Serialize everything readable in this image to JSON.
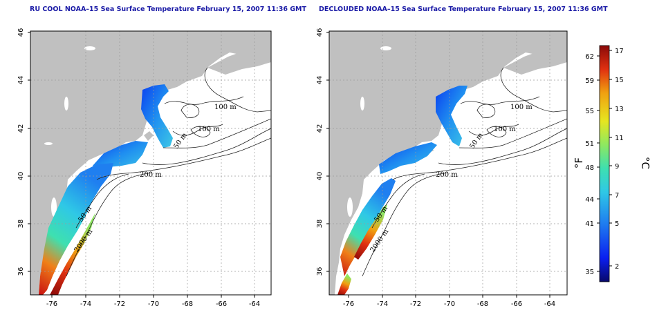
{
  "panels": [
    {
      "title": "RU COOL NOAA–15 Sea Surface Temperature February 15, 2007 11:36 GMT",
      "x_ticks": [
        "-76",
        "-74",
        "-72",
        "-70",
        "-68",
        "-66",
        "-64"
      ],
      "y_ticks": [
        "36",
        "38",
        "40",
        "42",
        "44",
        "46"
      ],
      "contour_labels": [
        "100 m",
        "100 m",
        "50 m",
        "200 m",
        "50 m",
        "2000 m"
      ]
    },
    {
      "title": "DECLOUDED NOAA–15 Sea Surface Temperature February 15, 2007 11:36 GMT",
      "x_ticks": [
        "-76",
        "-74",
        "-72",
        "-70",
        "-68",
        "-66",
        "-64"
      ],
      "y_ticks": [
        "36",
        "38",
        "40",
        "42",
        "44",
        "46"
      ],
      "contour_labels": [
        "100 m",
        "100 m",
        "50 m",
        "200 m",
        "50 m",
        "2000 m"
      ]
    }
  ],
  "colorbar": {
    "fahrenheit_ticks": [
      "62",
      "59",
      "55",
      "51",
      "48",
      "44",
      "41",
      "35"
    ],
    "celsius_ticks": [
      "17",
      "15",
      "13",
      "11",
      "9",
      "7",
      "5",
      "2"
    ],
    "fahrenheit_label": "°F",
    "celsius_label": "°C",
    "colors": [
      "#08086a",
      "#0a1ff0",
      "#1f7ff0",
      "#2fc8e6",
      "#3ee0b0",
      "#8ee860",
      "#e6e620",
      "#f0a010",
      "#e03010",
      "#8a0a0a"
    ]
  },
  "map": {
    "land_color": "#c0c0c0",
    "ocean_color": "#ffffff",
    "grid_color": "#9a9a9a",
    "lat_range": [
      35,
      46
    ],
    "lon_range": [
      -77,
      -63
    ]
  }
}
